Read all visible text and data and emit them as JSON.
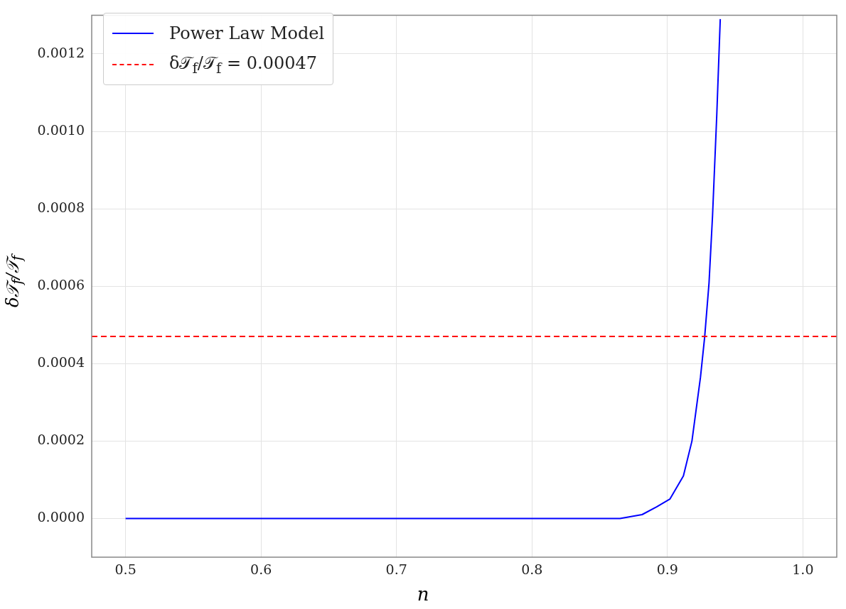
{
  "chart_data": {
    "type": "line",
    "xlabel": "n",
    "ylabel": "δ𝒯$_{f}$/𝒯$_{f}$",
    "series": [
      {
        "name": "Power Law Model",
        "color": "#0000ff",
        "x": [
          0.5,
          0.55,
          0.6,
          0.65,
          0.7,
          0.75,
          0.8,
          0.83,
          0.85,
          0.865,
          0.8813,
          0.892,
          0.9018,
          0.9118,
          0.9181,
          0.9244,
          0.9275,
          0.9307,
          0.9333,
          0.9364,
          0.939
        ],
        "values": [
          0,
          0,
          0,
          0,
          0,
          0,
          0,
          0,
          0,
          0,
          1e-05,
          3e-05,
          5e-05,
          0.00011,
          0.0002,
          0.000365,
          0.000469,
          0.000608,
          0.000782,
          0.00104,
          0.00129
        ]
      }
    ],
    "ref_lines": [
      {
        "axis": "y",
        "value": 0.00047,
        "label": "δ𝒯$_{f}$/𝒯$_{f}$ = 0.00047",
        "color": "#ff0000",
        "line_style": "dashed"
      }
    ],
    "xlim": [
      0.475,
      1.025
    ],
    "xticks": [
      {
        "value": 0.5,
        "label": "0.5"
      },
      {
        "value": 0.6,
        "label": "0.6"
      },
      {
        "value": 0.7,
        "label": "0.7"
      },
      {
        "value": 0.8,
        "label": "0.8"
      },
      {
        "value": 0.9,
        "label": "0.9"
      },
      {
        "value": 1.0,
        "label": "1.0"
      }
    ],
    "ylim": [
      -0.0001,
      0.0013
    ],
    "yticks": [
      {
        "value": 0,
        "label": "0.0000"
      },
      {
        "value": 0.0002,
        "label": "0.0002"
      },
      {
        "value": 0.0004,
        "label": "0.0004"
      },
      {
        "value": 0.0006,
        "label": "0.0006"
      },
      {
        "value": 0.0008,
        "label": "0.0008"
      },
      {
        "value": 0.001,
        "label": "0.0010"
      },
      {
        "value": 0.0012,
        "label": "0.0012"
      }
    ],
    "grid": true,
    "legend": "top left",
    "marker": "none",
    "line_style": "solid"
  }
}
